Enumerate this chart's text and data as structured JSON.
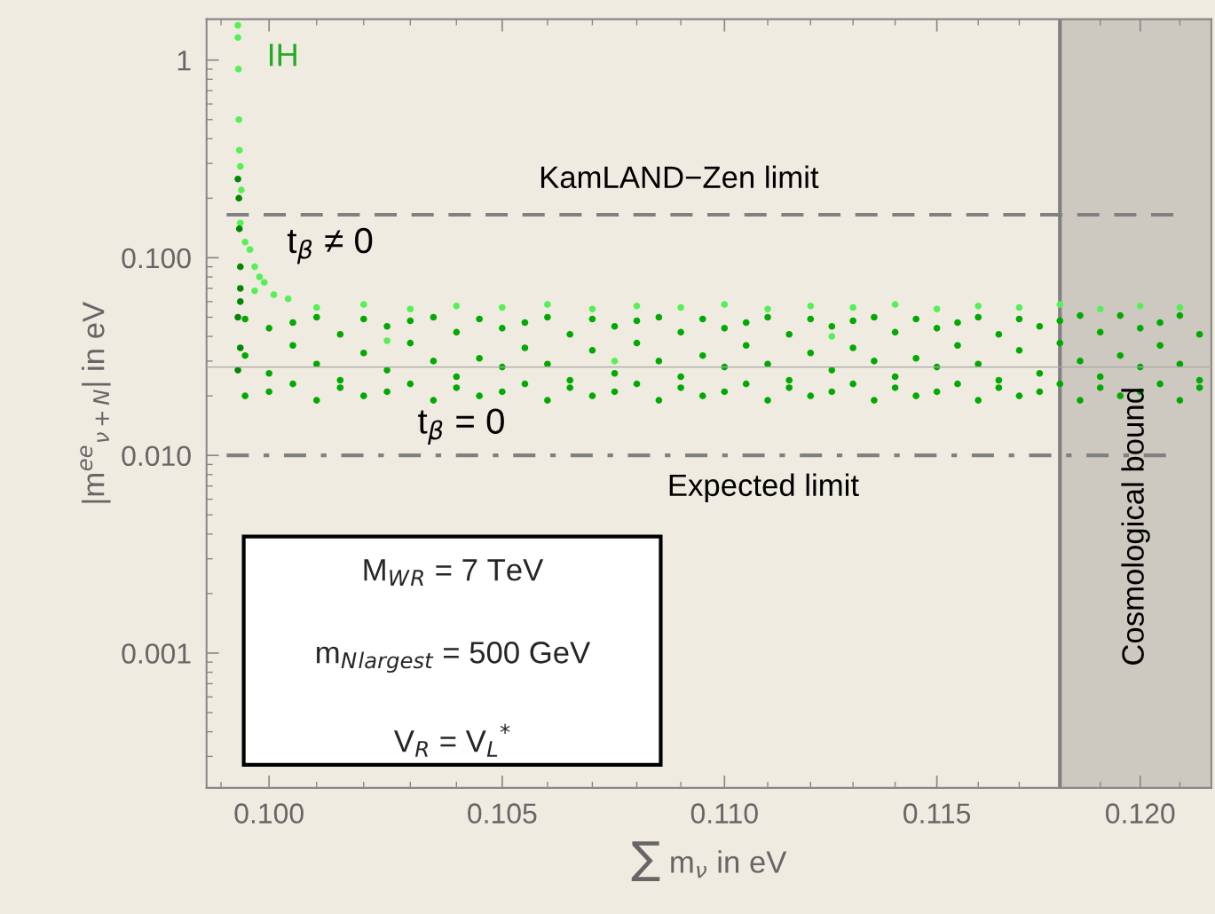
{
  "chart_data": {
    "type": "scatter",
    "xlabel": "∑ m$_{ν}$ in eV",
    "ylabel": "|m$^{ee}$$_{ν+N}$| in eV",
    "log": "xy",
    "xlim": [
      0.0987,
      0.1218
    ],
    "ylim": [
      0.000208,
      1.61
    ],
    "xticks": [
      {
        "value": 0.099,
        "label": null
      },
      {
        "value": 0.1,
        "label": "0.100"
      },
      {
        "value": 0.101,
        "label": null
      },
      {
        "value": 0.102,
        "label": null
      },
      {
        "value": 0.103,
        "label": null
      },
      {
        "value": 0.104,
        "label": null
      },
      {
        "value": 0.105,
        "label": "0.105"
      },
      {
        "value": 0.106,
        "label": null
      },
      {
        "value": 0.107,
        "label": null
      },
      {
        "value": 0.108,
        "label": null
      },
      {
        "value": 0.109,
        "label": null
      },
      {
        "value": 0.11,
        "label": "0.110"
      },
      {
        "value": 0.111,
        "label": null
      },
      {
        "value": 0.112,
        "label": null
      },
      {
        "value": 0.113,
        "label": null
      },
      {
        "value": 0.114,
        "label": null
      },
      {
        "value": 0.115,
        "label": "0.115"
      },
      {
        "value": 0.116,
        "label": null
      },
      {
        "value": 0.117,
        "label": null
      },
      {
        "value": 0.118,
        "label": null
      },
      {
        "value": 0.119,
        "label": null
      },
      {
        "value": 0.12,
        "label": "0.120"
      },
      {
        "value": 0.121,
        "label": null
      }
    ],
    "yticks": [
      {
        "value": 0.0003,
        "label": null
      },
      {
        "value": 0.0004,
        "label": null
      },
      {
        "value": 0.0005,
        "label": null
      },
      {
        "value": 0.0006,
        "label": null
      },
      {
        "value": 0.0007,
        "label": null
      },
      {
        "value": 0.0008,
        "label": null
      },
      {
        "value": 0.0009,
        "label": null
      },
      {
        "value": 0.001,
        "label": "0.001"
      },
      {
        "value": 0.002,
        "label": null
      },
      {
        "value": 0.003,
        "label": null
      },
      {
        "value": 0.004,
        "label": null
      },
      {
        "value": 0.005,
        "label": null
      },
      {
        "value": 0.006,
        "label": null
      },
      {
        "value": 0.007,
        "label": null
      },
      {
        "value": 0.008,
        "label": null
      },
      {
        "value": 0.009,
        "label": null
      },
      {
        "value": 0.01,
        "label": "0.010"
      },
      {
        "value": 0.02,
        "label": null
      },
      {
        "value": 0.03,
        "label": null
      },
      {
        "value": 0.04,
        "label": null
      },
      {
        "value": 0.05,
        "label": null
      },
      {
        "value": 0.06,
        "label": null
      },
      {
        "value": 0.07,
        "label": null
      },
      {
        "value": 0.08,
        "label": null
      },
      {
        "value": 0.09,
        "label": null
      },
      {
        "value": 0.1,
        "label": "0.100"
      },
      {
        "value": 0.2,
        "label": null
      },
      {
        "value": 0.3,
        "label": null
      },
      {
        "value": 0.4,
        "label": null
      },
      {
        "value": 0.5,
        "label": null
      },
      {
        "value": 0.6,
        "label": null
      },
      {
        "value": 0.7,
        "label": null
      },
      {
        "value": 0.8,
        "label": null
      },
      {
        "value": 0.9,
        "label": null
      },
      1
    ],
    "grid": false,
    "legend": false,
    "marker": "circle",
    "ref_lines": [
      {
        "axis": "y",
        "value": 0.165,
        "label": "KamLAND−Zen limit",
        "color": "#808080",
        "line_style": "dashed"
      },
      {
        "axis": "y",
        "value": 0.01,
        "label": "Expected limit",
        "color": "#808080",
        "line_style": "dashdot"
      },
      {
        "axis": "y",
        "value": 0.028,
        "label": null,
        "color": "#a8a8a8",
        "line_style": "solid"
      },
      {
        "axis": "x",
        "value": 0.118,
        "label": null,
        "color": "#808080",
        "line_style": "solid"
      }
    ],
    "bands": [
      {
        "axis": "x",
        "from": 0.118,
        "to": 0.1218,
        "label": "Cosmological bound",
        "color": "#cdc9c1"
      }
    ],
    "annotations": [
      "IH",
      "t$_{β}$ ≠ 0",
      "t$_{β}$ = 0",
      "M$_{W}$$_{R}$ = 7 TeV",
      "m$_{N}$$_{largest}$ = 500 GeV",
      "V$_{R}$ = V$_{L}$$^{*}$"
    ],
    "series": [
      {
        "color": "#00aa00",
        "x": [
          0.0995,
          0.0995,
          0.0995,
          0.1,
          0.1,
          0.1,
          0.1005,
          0.1005,
          0.1005,
          0.101,
          0.101,
          0.101,
          0.1015,
          0.1015,
          0.1015,
          0.102,
          0.102,
          0.102,
          0.1025,
          0.1025,
          0.1025,
          0.103,
          0.103,
          0.103,
          0.1035,
          0.1035,
          0.1035,
          0.104,
          0.104,
          0.104,
          0.1045,
          0.1045,
          0.1045,
          0.105,
          0.105,
          0.105,
          0.1055,
          0.1055,
          0.1055,
          0.106,
          0.106,
          0.106,
          0.1065,
          0.1065,
          0.1065,
          0.107,
          0.107,
          0.107,
          0.1075,
          0.1075,
          0.1075,
          0.108,
          0.108,
          0.108,
          0.1085,
          0.1085,
          0.1085,
          0.109,
          0.109,
          0.109,
          0.1095,
          0.1095,
          0.1095,
          0.11,
          0.11,
          0.11,
          0.1105,
          0.1105,
          0.1105,
          0.111,
          0.111,
          0.111,
          0.1115,
          0.1115,
          0.1115,
          0.112,
          0.112,
          0.112,
          0.1125,
          0.1125,
          0.1125,
          0.113,
          0.113,
          0.113,
          0.1135,
          0.1135,
          0.1135,
          0.114,
          0.114,
          0.114,
          0.1145,
          0.1145,
          0.1145,
          0.115,
          0.115,
          0.115,
          0.1155,
          0.1155,
          0.1155,
          0.116,
          0.116,
          0.116,
          0.1165,
          0.1165,
          0.1165,
          0.117,
          0.117,
          0.117,
          0.1175,
          0.1175,
          0.1175,
          0.118,
          0.118,
          0.118,
          0.1185,
          0.1185,
          0.1185,
          0.119,
          0.119,
          0.119,
          0.1195,
          0.1195,
          0.1195,
          0.12,
          0.12,
          0.12,
          0.1205,
          0.1205,
          0.1205,
          0.121,
          0.121,
          0.121,
          0.1215,
          0.1215,
          0.1215
        ],
        "values": [
          0.049,
          0.032,
          0.02,
          0.044,
          0.026,
          0.021,
          0.047,
          0.036,
          0.023,
          0.05,
          0.029,
          0.019,
          0.041,
          0.024,
          0.022,
          0.049,
          0.033,
          0.02,
          0.045,
          0.027,
          0.021,
          0.048,
          0.037,
          0.023,
          0.05,
          0.03,
          0.019,
          0.042,
          0.025,
          0.022,
          0.049,
          0.031,
          0.02,
          0.044,
          0.028,
          0.021,
          0.047,
          0.035,
          0.023,
          0.05,
          0.029,
          0.019,
          0.041,
          0.024,
          0.022,
          0.049,
          0.034,
          0.02,
          0.045,
          0.026,
          0.021,
          0.048,
          0.037,
          0.023,
          0.05,
          0.03,
          0.019,
          0.042,
          0.025,
          0.022,
          0.049,
          0.032,
          0.02,
          0.044,
          0.028,
          0.021,
          0.047,
          0.036,
          0.023,
          0.05,
          0.029,
          0.019,
          0.041,
          0.024,
          0.022,
          0.049,
          0.033,
          0.02,
          0.045,
          0.027,
          0.021,
          0.048,
          0.035,
          0.023,
          0.05,
          0.03,
          0.019,
          0.042,
          0.025,
          0.022,
          0.049,
          0.031,
          0.02,
          0.044,
          0.028,
          0.021,
          0.047,
          0.036,
          0.023,
          0.05,
          0.029,
          0.019,
          0.041,
          0.024,
          0.022,
          0.049,
          0.034,
          0.02,
          0.045,
          0.026,
          0.021,
          0.048,
          0.037,
          0.023,
          0.051,
          0.03,
          0.019,
          0.042,
          0.025,
          0.022,
          0.051,
          0.032,
          0.02,
          0.044,
          0.028,
          0.021,
          0.047,
          0.036,
          0.023,
          0.051,
          0.029,
          0.019,
          0.041,
          0.024,
          0.022
        ]
      },
      {
        "color": "#55f055",
        "x": [
          0.09935,
          0.09935,
          0.09936,
          0.09937,
          0.09938,
          0.0994,
          0.09942,
          0.0994,
          0.0995,
          0.0996,
          0.0997,
          0.0998,
          0.0999,
          0.0997,
          0.1001,
          0.1004,
          0.101,
          0.102,
          0.103,
          0.104,
          0.105,
          0.106,
          0.107,
          0.108,
          0.109,
          0.11,
          0.111,
          0.112,
          0.113,
          0.114,
          0.115,
          0.116,
          0.117,
          0.118,
          0.119,
          0.12,
          0.121,
          0.1025,
          0.1075,
          0.1125
        ],
        "values": [
          1.5,
          1.3,
          0.9,
          0.5,
          0.35,
          0.29,
          0.22,
          0.15,
          0.12,
          0.11,
          0.09,
          0.08,
          0.075,
          0.068,
          0.065,
          0.062,
          0.056,
          0.058,
          0.055,
          0.057,
          0.056,
          0.058,
          0.055,
          0.057,
          0.056,
          0.058,
          0.055,
          0.057,
          0.056,
          0.058,
          0.055,
          0.057,
          0.056,
          0.058,
          0.055,
          0.057,
          0.056,
          0.038,
          0.03,
          0.04
        ]
      },
      {
        "color": "#008800",
        "x": [
          0.09935,
          0.09937,
          0.09938,
          0.0994,
          0.0994,
          0.0994,
          0.09935,
          0.0994,
          0.09935
        ],
        "values": [
          0.25,
          0.2,
          0.14,
          0.09,
          0.07,
          0.06,
          0.05,
          0.035,
          0.027
        ]
      }
    ]
  }
}
